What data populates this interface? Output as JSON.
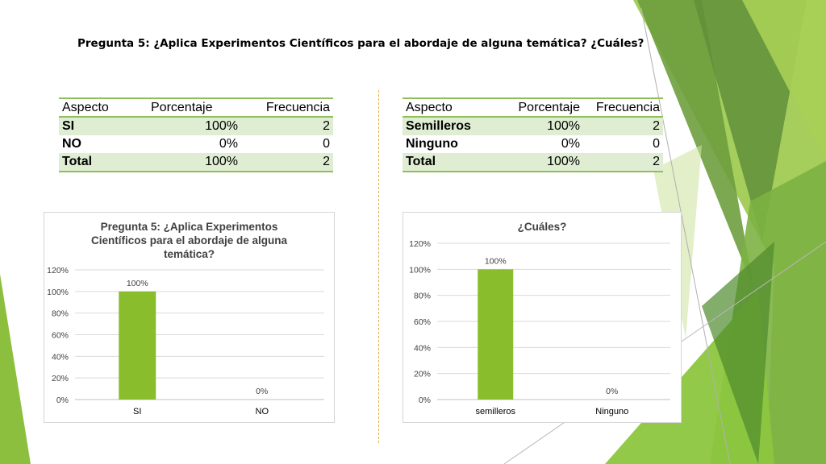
{
  "slide": {
    "title": "Pregunta 5: ¿Aplica Experimentos Científicos para el abordaje de alguna temática? ¿Cuáles?"
  },
  "colors": {
    "bar": "#8abd2c",
    "table_band": "#dfedd3",
    "table_rule": "#8fbf5a",
    "divider": "#e0b050"
  },
  "table1": {
    "headers": [
      "Aspecto",
      "Porcentaje",
      "Frecuencia"
    ],
    "rows": [
      [
        "SI",
        "100%",
        "2"
      ],
      [
        "NO",
        "0%",
        "0"
      ],
      [
        "Total",
        "100%",
        "2"
      ]
    ]
  },
  "table2": {
    "headers": [
      "Aspecto",
      "Porcentaje",
      "Frecuencia"
    ],
    "rows": [
      [
        "Semilleros",
        "100%",
        "2"
      ],
      [
        "Ninguno",
        "0%",
        "0"
      ],
      [
        "Total",
        "100%",
        "2"
      ]
    ]
  },
  "chart_data": [
    {
      "type": "bar",
      "title": "Pregunta 5: ¿Aplica Experimentos Científicos para el abordaje de alguna temática?",
      "categories": [
        "SI",
        "NO"
      ],
      "values": [
        100,
        0
      ],
      "data_labels": [
        "100%",
        "0%"
      ],
      "yticks": [
        "0%",
        "20%",
        "40%",
        "60%",
        "80%",
        "100%",
        "120%"
      ],
      "ylim": [
        0,
        120
      ],
      "grid": true
    },
    {
      "type": "bar",
      "title": "¿Cuáles?",
      "categories": [
        "semilleros",
        "Ninguno"
      ],
      "values": [
        100,
        0
      ],
      "data_labels": [
        "100%",
        "0%"
      ],
      "yticks": [
        "0%",
        "20%",
        "40%",
        "60%",
        "80%",
        "100%",
        "120%"
      ],
      "ylim": [
        0,
        120
      ],
      "grid": true
    }
  ]
}
